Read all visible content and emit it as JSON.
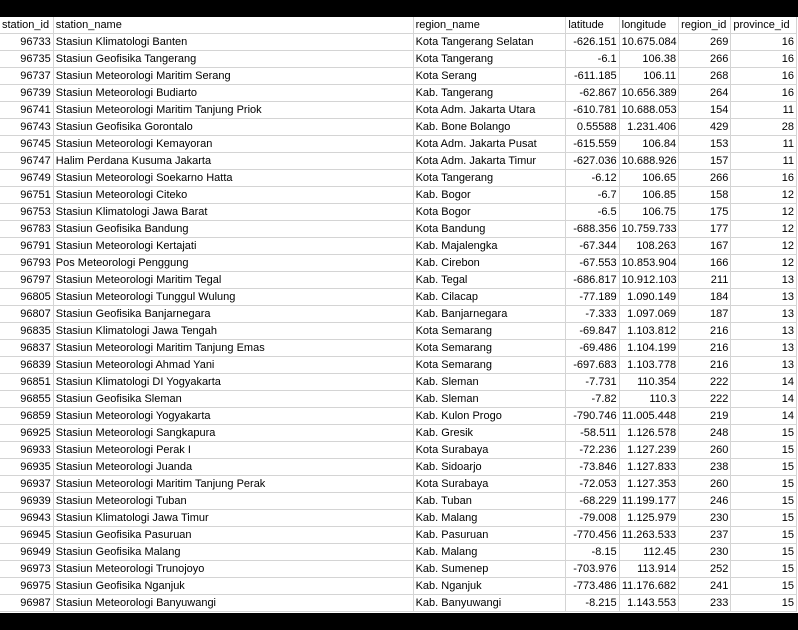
{
  "columns": [
    "station_id",
    "station_name",
    "region_name",
    "latitude",
    "longitude",
    "region_id",
    "province_id"
  ],
  "rows": [
    [
      "96733",
      "Stasiun Klimatologi Banten",
      "Kota Tangerang Selatan",
      "-626.151",
      "10.675.084",
      "269",
      "16"
    ],
    [
      "96735",
      "Stasiun Geofisika Tangerang",
      "Kota Tangerang",
      "-6.1",
      "106.38",
      "266",
      "16"
    ],
    [
      "96737",
      "Stasiun Meteorologi Maritim Serang",
      "Kota Serang",
      "-611.185",
      "106.11",
      "268",
      "16"
    ],
    [
      "96739",
      "Stasiun Meteorologi Budiarto",
      "Kab. Tangerang",
      "-62.867",
      "10.656.389",
      "264",
      "16"
    ],
    [
      "96741",
      "Stasiun Meteorologi Maritim Tanjung Priok",
      "Kota Adm. Jakarta Utara",
      "-610.781",
      "10.688.053",
      "154",
      "11"
    ],
    [
      "96743",
      "Stasiun Geofisika Gorontalo",
      "Kab. Bone Bolango",
      "0.55588",
      "1.231.406",
      "429",
      "28"
    ],
    [
      "96745",
      "Stasiun Meteorologi Kemayoran",
      "Kota Adm. Jakarta Pusat",
      "-615.559",
      "106.84",
      "153",
      "11"
    ],
    [
      "96747",
      "Halim Perdana Kusuma Jakarta",
      "Kota Adm. Jakarta Timur",
      "-627.036",
      "10.688.926",
      "157",
      "11"
    ],
    [
      "96749",
      "Stasiun Meteorologi Soekarno Hatta",
      "Kota Tangerang",
      "-6.12",
      "106.65",
      "266",
      "16"
    ],
    [
      "96751",
      "Stasiun Meteorologi Citeko",
      "Kab. Bogor",
      "-6.7",
      "106.85",
      "158",
      "12"
    ],
    [
      "96753",
      "Stasiun Klimatologi Jawa Barat",
      "Kota Bogor",
      "-6.5",
      "106.75",
      "175",
      "12"
    ],
    [
      "96783",
      "Stasiun Geofisika Bandung",
      "Kota Bandung",
      "-688.356",
      "10.759.733",
      "177",
      "12"
    ],
    [
      "96791",
      "Stasiun Meteorologi Kertajati",
      "Kab. Majalengka",
      "-67.344",
      "108.263",
      "167",
      "12"
    ],
    [
      "96793",
      "Pos Meteorologi Penggung",
      "Kab. Cirebon",
      "-67.553",
      "10.853.904",
      "166",
      "12"
    ],
    [
      "96797",
      "Stasiun Meteorologi Maritim Tegal",
      "Kab. Tegal",
      "-686.817",
      "10.912.103",
      "211",
      "13"
    ],
    [
      "96805",
      "Stasiun Meteorologi Tunggul Wulung",
      "Kab. Cilacap",
      "-77.189",
      "1.090.149",
      "184",
      "13"
    ],
    [
      "96807",
      "Stasiun Geofisika Banjarnegara",
      "Kab. Banjarnegara",
      "-7.333",
      "1.097.069",
      "187",
      "13"
    ],
    [
      "96835",
      "Stasiun Klimatologi Jawa Tengah",
      "Kota Semarang",
      "-69.847",
      "1.103.812",
      "216",
      "13"
    ],
    [
      "96837",
      "Stasiun Meteorologi Maritim Tanjung Emas",
      "Kota Semarang",
      "-69.486",
      "1.104.199",
      "216",
      "13"
    ],
    [
      "96839",
      "Stasiun Meteorologi Ahmad Yani",
      "Kota Semarang",
      "-697.683",
      "1.103.778",
      "216",
      "13"
    ],
    [
      "96851",
      "Stasiun Klimatologi DI Yogyakarta",
      "Kab. Sleman",
      "-7.731",
      "110.354",
      "222",
      "14"
    ],
    [
      "96855",
      "Stasiun Geofisika Sleman",
      "Kab. Sleman",
      "-7.82",
      "110.3",
      "222",
      "14"
    ],
    [
      "96859",
      "Stasiun Meteorologi Yogyakarta",
      "Kab. Kulon Progo",
      "-790.746",
      "11.005.448",
      "219",
      "14"
    ],
    [
      "96925",
      "Stasiun Meteorologi Sangkapura",
      "Kab. Gresik",
      "-58.511",
      "1.126.578",
      "248",
      "15"
    ],
    [
      "96933",
      "Stasiun Meteorologi Perak I",
      "Kota Surabaya",
      "-72.236",
      "1.127.239",
      "260",
      "15"
    ],
    [
      "96935",
      "Stasiun Meteorologi Juanda",
      "Kab. Sidoarjo",
      "-73.846",
      "1.127.833",
      "238",
      "15"
    ],
    [
      "96937",
      "Stasiun Meteorologi Maritim Tanjung Perak",
      "Kota Surabaya",
      "-72.053",
      "1.127.353",
      "260",
      "15"
    ],
    [
      "96939",
      "Stasiun Meteorologi Tuban",
      "Kab. Tuban",
      "-68.229",
      "11.199.177",
      "246",
      "15"
    ],
    [
      "96943",
      "Stasiun Klimatologi Jawa Timur",
      "Kab. Malang",
      "-79.008",
      "1.125.979",
      "230",
      "15"
    ],
    [
      "96945",
      "Stasiun Geofisika Pasuruan",
      "Kab. Pasuruan",
      "-770.456",
      "11.263.533",
      "237",
      "15"
    ],
    [
      "96949",
      "Stasiun Geofisika Malang",
      "Kab. Malang",
      "-8.15",
      "112.45",
      "230",
      "15"
    ],
    [
      "96973",
      "Stasiun Meteorologi Trunojoyo",
      "Kab. Sumenep",
      "-703.976",
      "113.914",
      "252",
      "15"
    ],
    [
      "96975",
      "Stasiun Geofisika Nganjuk",
      "Kab. Nganjuk",
      "-773.486",
      "11.176.682",
      "241",
      "15"
    ],
    [
      "96987",
      "Stasiun Meteorologi Banyuwangi",
      "Kab. Banyuwangi",
      "-8.215",
      "1.143.553",
      "233",
      "15"
    ]
  ]
}
